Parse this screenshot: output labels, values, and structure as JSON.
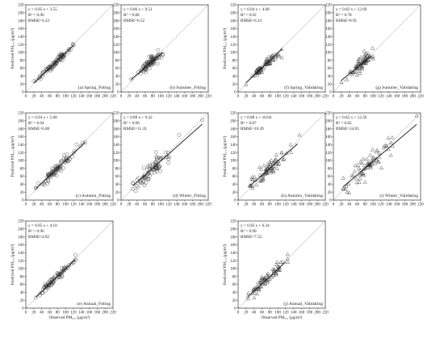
{
  "chart_data": [
    {
      "id": "a",
      "type": "scatter",
      "marker": "circle",
      "label": "(a) Spring_Fitting",
      "stats": {
        "eq": "y = 0.95 x + 3.55",
        "r2": "R² = 0.96",
        "rmse": "RMSE=4.43"
      },
      "xlabel": "",
      "ylabel": "Predicted PM₂.₅ (μg/m³)",
      "xlim": [
        0,
        220
      ],
      "ylim": [
        0,
        220
      ],
      "ticks": [
        "0",
        "20",
        "40",
        "60",
        "80",
        "100",
        "120",
        "140",
        "160",
        "180",
        "200",
        "220"
      ],
      "fit": {
        "slope": 0.95,
        "intercept": 3.55,
        "x_range": [
          20,
          120
        ]
      },
      "n_points": 85,
      "spread": 4.43,
      "x_dist": [
        20,
        120,
        72,
        20
      ]
    },
    {
      "id": "b",
      "type": "scatter",
      "marker": "circle",
      "label": "(b) Summer_Fitting",
      "stats": {
        "eq": "y = 0.86 x + 9.51",
        "r2": "R² = 0.88",
        "rmse": "RMSE=6.52"
      },
      "xlabel": "",
      "ylabel": "",
      "xlim": [
        0,
        220
      ],
      "ylim": [
        0,
        220
      ],
      "ticks": [
        "0",
        "20",
        "40",
        "60",
        "80",
        "100",
        "120",
        "140",
        "160",
        "180",
        "200",
        "220"
      ],
      "fit": {
        "slope": 0.86,
        "intercept": 9.51,
        "x_range": [
          25,
          105
        ]
      },
      "n_points": 85,
      "spread": 6.5,
      "x_dist": [
        25,
        105,
        72,
        13
      ]
    },
    {
      "id": "f",
      "type": "scatter",
      "marker": "triangle",
      "label": "(f) Spring_Validating",
      "stats": {
        "eq": "y = 0.94 x + 4.68",
        "r2": "R² = 0.92",
        "rmse": "RMSE=6.23"
      },
      "xlabel": "",
      "ylabel": "Predicted PM₂.₅ (μg/m³)",
      "xlim": [
        0,
        220
      ],
      "ylim": [
        0,
        220
      ],
      "ticks": [
        "0",
        "20",
        "40",
        "60",
        "80",
        "100",
        "120",
        "140",
        "160",
        "180",
        "200",
        "220"
      ],
      "fit": {
        "slope": 0.94,
        "intercept": 4.68,
        "x_range": [
          20,
          110
        ]
      },
      "n_points": 75,
      "spread": 6.2,
      "x_dist": [
        20,
        110,
        70,
        20
      ]
    },
    {
      "id": "g",
      "type": "scatter",
      "marker": "triangle",
      "label": "(g) Summer_Validating",
      "stats": {
        "eq": "y = 0.82 x + 12.69",
        "r2": "R² = 0.78",
        "rmse": "RMSE=8.91"
      },
      "xlabel": "",
      "ylabel": "",
      "xlim": [
        0,
        220
      ],
      "ylim": [
        0,
        220
      ],
      "ticks": [
        "0",
        "20",
        "40",
        "60",
        "80",
        "100",
        "120",
        "140",
        "160",
        "180",
        "200",
        "220"
      ],
      "fit": {
        "slope": 0.82,
        "intercept": 12.69,
        "x_range": [
          20,
          95
        ]
      },
      "n_points": 75,
      "spread": 9,
      "x_dist": [
        20,
        100,
        72,
        14
      ]
    },
    {
      "id": "c",
      "type": "scatter",
      "marker": "circle",
      "label": "(c) Autumn_Fitting",
      "stats": {
        "eq": "y = 0.94 x + 5.08",
        "r2": "R² = 0.94",
        "rmse": "RMSE=6.88"
      },
      "xlabel": "",
      "ylabel": "Predicted PM₂.₅ (μg/m³)",
      "xlim": [
        0,
        220
      ],
      "ylim": [
        0,
        220
      ],
      "ticks": [
        "0",
        "20",
        "40",
        "60",
        "80",
        "100",
        "120",
        "140",
        "160",
        "180",
        "200",
        "220"
      ],
      "fit": {
        "slope": 0.94,
        "intercept": 5.08,
        "x_range": [
          25,
          150
        ]
      },
      "n_points": 85,
      "spread": 6.9,
      "x_dist": [
        25,
        150,
        75,
        25
      ]
    },
    {
      "id": "d",
      "type": "scatter",
      "marker": "circle",
      "label": "(d) Winter_Fitting",
      "stats": {
        "eq": "y = 0.89 x + 9.42",
        "r2": "R² = 0.90",
        "rmse": "RMSE=11.33"
      },
      "xlabel": "",
      "ylabel": "",
      "xlim": [
        0,
        220
      ],
      "ylim": [
        0,
        220
      ],
      "ticks": [
        "0",
        "20",
        "40",
        "60",
        "80",
        "100",
        "120",
        "140",
        "160",
        "180",
        "200",
        "220"
      ],
      "fit": {
        "slope": 0.89,
        "intercept": 9.42,
        "x_range": [
          30,
          205
        ]
      },
      "n_points": 85,
      "spread": 11.3,
      "x_dist": [
        30,
        205,
        80,
        28
      ]
    },
    {
      "id": "h",
      "type": "scatter",
      "marker": "triangle",
      "label": "(h) Autumn_Validating",
      "stats": {
        "eq": "y = 0.88 x + 10.04",
        "r2": "R² = 0.87",
        "rmse": "RMSE=10.49"
      },
      "xlabel": "",
      "ylabel": "Predicted PM₂.₅ (μg/m³)",
      "xlim": [
        0,
        220
      ],
      "ylim": [
        0,
        220
      ],
      "ticks": [
        "0",
        "20",
        "40",
        "60",
        "80",
        "100",
        "120",
        "140",
        "160",
        "180",
        "200",
        "220"
      ],
      "fit": {
        "slope": 0.88,
        "intercept": 10.04,
        "x_range": [
          30,
          150
        ]
      },
      "n_points": 75,
      "spread": 10.5,
      "x_dist": [
        30,
        155,
        75,
        25
      ]
    },
    {
      "id": "i",
      "type": "scatter",
      "marker": "triangle",
      "label": "(i) Winter_Validating",
      "stats": {
        "eq": "y = 0.85 x + 12.59",
        "r2": "R² = 0.85",
        "rmse": "RMSE=14.05"
      },
      "xlabel": "",
      "ylabel": "",
      "xlim": [
        0,
        220
      ],
      "ylim": [
        0,
        220
      ],
      "ticks": [
        "0",
        "20",
        "40",
        "60",
        "80",
        "100",
        "120",
        "140",
        "160",
        "180",
        "200",
        "220"
      ],
      "fit": {
        "slope": 0.85,
        "intercept": 12.59,
        "x_range": [
          25,
          210
        ]
      },
      "n_points": 75,
      "spread": 14,
      "x_dist": [
        25,
        210,
        85,
        32
      ]
    },
    {
      "id": "e",
      "type": "scatter",
      "marker": "circle",
      "label": "(e) Annual_Fitting",
      "stats": {
        "eq": "y = 0.95 x + 4.10",
        "r2": "R² = 0.96",
        "rmse": "RMSE=4.82"
      },
      "xlabel": "Observed PM₂.₅ (μg/m³)",
      "ylabel": "Predicted PM₂.₅ (μg/m³)",
      "xlim": [
        0,
        220
      ],
      "ylim": [
        0,
        220
      ],
      "ticks": [
        "0",
        "20",
        "40",
        "60",
        "80",
        "100",
        "120",
        "140",
        "160",
        "180",
        "200",
        "220"
      ],
      "fit": {
        "slope": 0.95,
        "intercept": 4.1,
        "x_range": [
          25,
          125
        ]
      },
      "n_points": 80,
      "spread": 4.8,
      "x_dist": [
        25,
        125,
        75,
        22
      ]
    },
    {
      "id": "j",
      "type": "scatter",
      "marker": "triangle",
      "label": "(j) Annual_Validating",
      "stats": {
        "eq": "y = 0.92 x + 6.34",
        "r2": "R² = 0.90",
        "rmse": "RMSE=7.52"
      },
      "xlabel": "Observed PM₂.₅ (μg/m³)",
      "ylabel": "Predicted PM₂.₅ (μg/m³)",
      "xlim": [
        0,
        220
      ],
      "ylim": [
        0,
        220
      ],
      "ticks": [
        "0",
        "20",
        "40",
        "60",
        "80",
        "100",
        "120",
        "140",
        "160",
        "180",
        "200",
        "220"
      ],
      "fit": {
        "slope": 0.92,
        "intercept": 6.34,
        "x_range": [
          25,
          120
        ]
      },
      "n_points": 75,
      "spread": 7.5,
      "x_dist": [
        25,
        125,
        75,
        22
      ]
    }
  ]
}
